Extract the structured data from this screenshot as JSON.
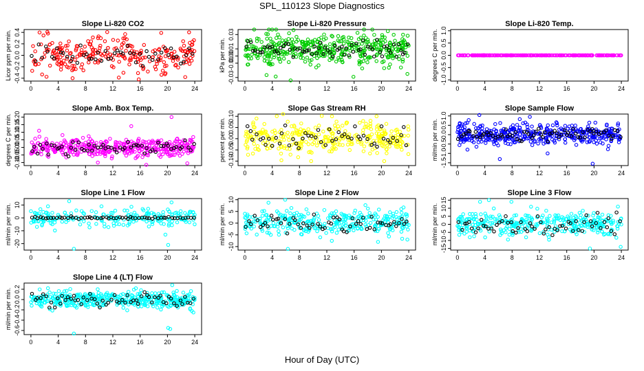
{
  "page_title": "SPL_110123  Slope Diagnostics",
  "x_axis_label": "Hour of Day (UTC)",
  "colors": {
    "red": "#ff0000",
    "green": "#00cc00",
    "magenta": "#ff00ff",
    "yellow": "#ffff00",
    "blue": "#0000ff",
    "cyan": "#00ffff",
    "black": "#000000"
  },
  "chart_data": [
    {
      "type": "scatter",
      "title": "Slope Li-820 CO2",
      "ylabel": "Licor ppm per min.",
      "xlim": [
        -1,
        25
      ],
      "ylim": [
        -0.45,
        0.45
      ],
      "xticks": [
        0,
        4,
        8,
        12,
        16,
        20,
        24
      ],
      "xtick_labels": [
        "0",
        "4",
        "8",
        "12",
        "16",
        "20",
        "24"
      ],
      "yticks": [
        -0.4,
        -0.2,
        0,
        0.2,
        0.4
      ],
      "ytick_labels": [
        "-0.4",
        "-0.2",
        "0.0",
        "0.2",
        "0.4"
      ],
      "series_color": "red",
      "n_colored": 260,
      "n_black": 52,
      "center": 0.0,
      "spread": 0.15,
      "black_spread": 0.08,
      "outliers": [
        [
          2.5,
          0.38
        ],
        [
          6.1,
          -0.4
        ],
        [
          13.8,
          0.37
        ],
        [
          15.8,
          -0.42
        ],
        [
          22.6,
          -0.38
        ],
        [
          9.9,
          0.33
        ]
      ]
    },
    {
      "type": "scatter",
      "title": "Slope Li-820 Pressure",
      "ylabel": "kPa per min.",
      "xlim": [
        -1,
        25
      ],
      "ylim": [
        -0.035,
        0.037
      ],
      "xticks": [
        0,
        4,
        8,
        12,
        16,
        20,
        24
      ],
      "xtick_labels": [
        "0",
        "4",
        "8",
        "12",
        "16",
        "20",
        "24"
      ],
      "yticks": [
        -0.03,
        -0.01,
        0,
        0.01,
        0.03
      ],
      "ytick_labels": [
        "-0.03",
        "-0.01",
        "0.00",
        "0.01",
        "0.03"
      ],
      "series_color": "green",
      "n_colored": 420,
      "n_black": 70,
      "center": 0.01,
      "spread": 0.011,
      "black_spread": 0.006,
      "outliers": [
        [
          6.7,
          -0.034
        ],
        [
          15.9,
          -0.029
        ],
        [
          23.8,
          -0.025
        ],
        [
          0.4,
          -0.012
        ]
      ]
    },
    {
      "type": "scatter",
      "title": "Slope Li-820 Temp.",
      "ylabel": "degrees C per min.",
      "xlim": [
        -1,
        25
      ],
      "ylim": [
        -1.05,
        1.05
      ],
      "xticks": [
        0,
        4,
        8,
        12,
        16,
        20,
        24
      ],
      "xtick_labels": [
        "0",
        "4",
        "8",
        "12",
        "16",
        "20",
        "24"
      ],
      "yticks": [
        -1,
        -0.5,
        0,
        0.5,
        1
      ],
      "ytick_labels": [
        "-1.0",
        "-0.5",
        "0.0",
        "0.5",
        "1.0"
      ],
      "series_color": "magenta",
      "n_colored": 250,
      "n_black": 0,
      "center": 0.0,
      "spread": 0.0,
      "black_spread": 0.0,
      "outliers": []
    },
    {
      "type": "scatter",
      "title": "Slope Amb. Box Temp.",
      "ylabel": "degrees C per min.",
      "xlim": [
        -1,
        25
      ],
      "ylim": [
        -0.12,
        0.22
      ],
      "xticks": [
        0,
        4,
        8,
        12,
        16,
        20,
        24
      ],
      "xtick_labels": [
        "0",
        "4",
        "8",
        "12",
        "16",
        "20",
        "24"
      ],
      "yticks": [
        -0.1,
        -0.05,
        0,
        0.05,
        0.1,
        0.15,
        0.2
      ],
      "ytick_labels": [
        "-0.10",
        "-0.05",
        "0.00",
        "0.05",
        "0.10",
        "0.15",
        "0.20"
      ],
      "series_color": "magenta",
      "n_colored": 400,
      "n_black": 60,
      "center": 0.0,
      "spread": 0.03,
      "black_spread": 0.025,
      "outliers": [
        [
          20.6,
          0.2
        ],
        [
          14.7,
          0.14
        ],
        [
          16.9,
          -0.115
        ],
        [
          22.9,
          -0.105
        ],
        [
          1.2,
          0.11
        ],
        [
          9.8,
          -0.1
        ]
      ]
    },
    {
      "type": "scatter",
      "title": "Slope Gas Stream RH",
      "ylabel": "percent per min.",
      "xlim": [
        -1,
        25
      ],
      "ylim": [
        -0.12,
        0.11
      ],
      "xticks": [
        0,
        4,
        8,
        12,
        16,
        20,
        24
      ],
      "xtick_labels": [
        "0",
        "4",
        "8",
        "12",
        "16",
        "20",
        "24"
      ],
      "yticks": [
        -0.1,
        -0.05,
        0,
        0.05,
        0.1
      ],
      "ytick_labels": [
        "-0.10",
        "-0.05",
        "0.00",
        "0.05",
        "0.10"
      ],
      "series_color": "yellow",
      "n_colored": 320,
      "n_black": 50,
      "center": 0.0,
      "spread": 0.035,
      "black_spread": 0.028,
      "outliers": [
        [
          1.7,
          0.09
        ],
        [
          18.4,
          0.08
        ],
        [
          9.7,
          -0.1
        ],
        [
          20.4,
          -0.1
        ]
      ]
    },
    {
      "type": "scatter",
      "title": "Slope Sample Flow",
      "ylabel": "ml/min per min.",
      "xlim": [
        -1,
        25
      ],
      "ylim": [
        -1.65,
        1.1
      ],
      "xticks": [
        0,
        4,
        8,
        12,
        16,
        20,
        24
      ],
      "xtick_labels": [
        "0",
        "4",
        "8",
        "12",
        "16",
        "20",
        "24"
      ],
      "yticks": [
        -1.5,
        -1,
        -0.5,
        0,
        0.5,
        1
      ],
      "ytick_labels": [
        "-1.5",
        "-1.0",
        "-0.5",
        "0.0",
        "0.5",
        "1.0"
      ],
      "series_color": "blue",
      "n_colored": 420,
      "n_black": 70,
      "center": 0.0,
      "spread": 0.28,
      "black_spread": 0.15,
      "outliers": [
        [
          19.8,
          -1.55
        ],
        [
          6.2,
          -1.3
        ],
        [
          3.2,
          1.05
        ],
        [
          10.6,
          0.95
        ],
        [
          13.2,
          -1.0
        ]
      ]
    },
    {
      "type": "scatter",
      "title": "Slope Line 1 Flow",
      "ylabel": "ml/min per min.",
      "xlim": [
        -1,
        25
      ],
      "ylim": [
        -25,
        15
      ],
      "xticks": [
        0,
        4,
        8,
        12,
        16,
        20,
        24
      ],
      "xtick_labels": [
        "0",
        "4",
        "8",
        "12",
        "16",
        "20",
        "24"
      ],
      "yticks": [
        -20,
        -10,
        0,
        10
      ],
      "ytick_labels": [
        "-20",
        "-10",
        "0",
        "10"
      ],
      "series_color": "cyan",
      "n_colored": 220,
      "n_black": 60,
      "center": 0.0,
      "spread": 3.2,
      "black_spread": 0.4,
      "outliers": [
        [
          6.3,
          -24
        ],
        [
          20.1,
          -21
        ],
        [
          5.6,
          13
        ],
        [
          20.6,
          12
        ],
        [
          19.7,
          -13
        ],
        [
          2.5,
          9
        ]
      ]
    },
    {
      "type": "scatter",
      "title": "Slope Line 2 Flow",
      "ylabel": "ml/min per min.",
      "xlim": [
        -1,
        25
      ],
      "ylim": [
        -11.5,
        10.5
      ],
      "xticks": [
        0,
        4,
        8,
        12,
        16,
        20,
        24
      ],
      "xtick_labels": [
        "0",
        "4",
        "8",
        "12",
        "16",
        "20",
        "24"
      ],
      "yticks": [
        -10,
        -5,
        0,
        5,
        10
      ],
      "ytick_labels": [
        "-10",
        "-5",
        "0",
        "5",
        "10"
      ],
      "series_color": "cyan",
      "n_colored": 320,
      "n_black": 60,
      "center": 0.3,
      "spread": 2.6,
      "black_spread": 1.8,
      "outliers": [
        [
          6.3,
          -11
        ],
        [
          5.9,
          10
        ],
        [
          23.8,
          -7
        ],
        [
          3.8,
          -5
        ],
        [
          19.5,
          -8
        ],
        [
          22.9,
          6
        ]
      ]
    },
    {
      "type": "scatter",
      "title": "Slope Line 3 Flow",
      "ylabel": "ml/min per min.",
      "xlim": [
        -1,
        25
      ],
      "ylim": [
        -16,
        16
      ],
      "xticks": [
        0,
        4,
        8,
        12,
        16,
        20,
        24
      ],
      "xtick_labels": [
        "0",
        "4",
        "8",
        "12",
        "16",
        "20",
        "24"
      ],
      "yticks": [
        -15,
        -10,
        -5,
        0,
        5,
        10,
        15
      ],
      "ytick_labels": [
        "-15",
        "-10",
        "-5",
        "0",
        "5",
        "10",
        "15"
      ],
      "series_color": "cyan",
      "n_colored": 330,
      "n_black": 60,
      "center": 0.0,
      "spread": 3.6,
      "black_spread": 3.2,
      "outliers": [
        [
          3.3,
          14
        ],
        [
          4.6,
          15
        ],
        [
          7.9,
          14
        ],
        [
          23.9,
          -14
        ],
        [
          1.8,
          -8
        ],
        [
          23.5,
          11
        ],
        [
          19.4,
          -15
        ]
      ]
    },
    {
      "type": "scatter",
      "title": "Slope Line 4 (LT) Flow",
      "ylabel": "ml/min per min.",
      "xlim": [
        -1,
        25
      ],
      "ylim": [
        -0.68,
        0.32
      ],
      "xticks": [
        0,
        4,
        8,
        12,
        16,
        20,
        24
      ],
      "xtick_labels": [
        "0",
        "4",
        "8",
        "12",
        "16",
        "20",
        "24"
      ],
      "yticks": [
        -0.6,
        -0.4,
        -0.2,
        0,
        0.2
      ],
      "ytick_labels": [
        "-0.6",
        "-0.4",
        "-0.2",
        "0.0",
        "0.2"
      ],
      "series_color": "cyan",
      "n_colored": 420,
      "n_black": 60,
      "center": 0.0,
      "spread": 0.08,
      "black_spread": 0.08,
      "outliers": [
        [
          6.3,
          -0.66
        ],
        [
          20.1,
          -0.55
        ],
        [
          20.4,
          -0.57
        ],
        [
          20.7,
          0.28
        ],
        [
          2.5,
          0.22
        ],
        [
          23.8,
          -0.25
        ]
      ]
    }
  ]
}
